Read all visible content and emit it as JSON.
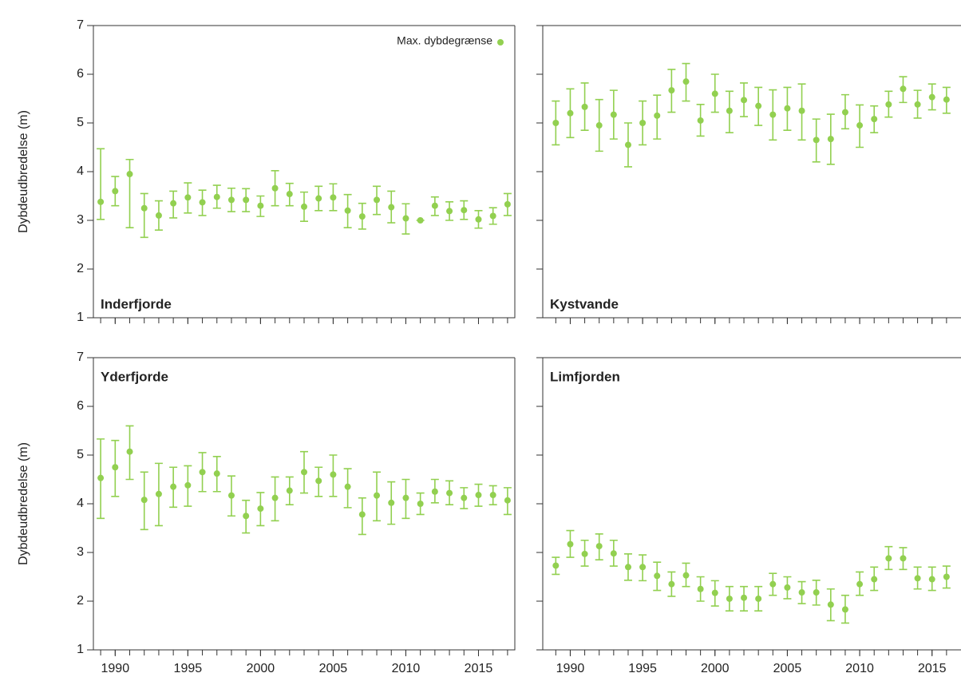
{
  "chart_data": [
    {
      "type": "scatter",
      "title": "Inderfjorde",
      "title_position": "bottom-left",
      "ylabel": "Dybdeudbredelse (m)",
      "legend": "upper right",
      "show_xtick_labels": false,
      "show_ytick_labels": true,
      "x": [
        1989,
        1990,
        1991,
        1992,
        1993,
        1994,
        1995,
        1996,
        1997,
        1998,
        1999,
        2000,
        2001,
        2002,
        2003,
        2004,
        2005,
        2006,
        2007,
        2008,
        2009,
        2010,
        2011,
        2012,
        2013,
        2014,
        2015,
        2016,
        2017
      ],
      "xlim": [
        1988.5,
        2017.5
      ],
      "xticks": [
        1990,
        1995,
        2000,
        2005,
        2010,
        2015
      ],
      "ylim": [
        1,
        7
      ],
      "yticks": [
        1,
        2,
        3,
        4,
        5,
        6,
        7
      ],
      "series": [
        {
          "name": "Max. dybdegrænse",
          "color": "#92d050",
          "values": [
            3.38,
            3.6,
            3.95,
            3.25,
            3.1,
            3.35,
            3.47,
            3.37,
            3.48,
            3.42,
            3.42,
            3.3,
            3.66,
            3.54,
            3.28,
            3.45,
            3.47,
            3.2,
            3.08,
            3.42,
            3.27,
            3.04,
            3.0,
            3.3,
            3.19,
            3.21,
            3.02,
            3.09,
            3.33
          ],
          "lower": [
            3.02,
            3.3,
            2.85,
            2.65,
            2.8,
            3.05,
            3.15,
            3.1,
            3.25,
            3.18,
            3.18,
            3.08,
            3.3,
            3.3,
            2.98,
            3.2,
            3.2,
            2.85,
            2.82,
            3.12,
            2.95,
            2.72,
            3.0,
            3.1,
            3.0,
            3.02,
            2.84,
            2.92,
            3.1
          ],
          "upper": [
            4.47,
            3.9,
            4.25,
            3.55,
            3.4,
            3.6,
            3.77,
            3.62,
            3.72,
            3.66,
            3.65,
            3.5,
            4.02,
            3.76,
            3.58,
            3.7,
            3.75,
            3.53,
            3.35,
            3.7,
            3.6,
            3.34,
            3.0,
            3.48,
            3.38,
            3.4,
            3.2,
            3.26,
            3.55
          ]
        }
      ]
    },
    {
      "type": "scatter",
      "title": "Kystvande",
      "title_position": "bottom-left",
      "show_xtick_labels": false,
      "show_ytick_labels": false,
      "x": [
        1989,
        1990,
        1991,
        1992,
        1993,
        1994,
        1995,
        1996,
        1997,
        1998,
        1999,
        2000,
        2001,
        2002,
        2003,
        2004,
        2005,
        2006,
        2007,
        2008,
        2009,
        2010,
        2011,
        2012,
        2013,
        2014,
        2015,
        2016
      ],
      "xlim": [
        1988.1,
        2017
      ],
      "xticks": [
        1990,
        1995,
        2000,
        2005,
        2010,
        2015
      ],
      "ylim": [
        1,
        7
      ],
      "yticks": [
        1,
        2,
        3,
        4,
        5,
        6,
        7
      ],
      "series": [
        {
          "color": "#92d050",
          "values": [
            5.0,
            5.2,
            5.33,
            4.95,
            5.17,
            4.55,
            5.0,
            5.15,
            5.67,
            5.85,
            5.05,
            5.6,
            5.25,
            5.47,
            5.35,
            5.17,
            5.3,
            5.25,
            4.65,
            4.67,
            5.22,
            4.95,
            5.08,
            5.38,
            5.7,
            5.38,
            5.53,
            5.48
          ],
          "lower": [
            4.55,
            4.7,
            4.85,
            4.42,
            4.67,
            4.1,
            4.55,
            4.67,
            5.22,
            5.45,
            4.73,
            5.22,
            4.8,
            5.13,
            4.95,
            4.65,
            4.85,
            4.65,
            4.2,
            4.15,
            4.88,
            4.5,
            4.8,
            5.12,
            5.42,
            5.1,
            5.27,
            5.2
          ],
          "upper": [
            5.45,
            5.7,
            5.82,
            5.48,
            5.67,
            5.0,
            5.45,
            5.57,
            6.1,
            6.22,
            5.38,
            6.0,
            5.65,
            5.82,
            5.73,
            5.68,
            5.73,
            5.8,
            5.08,
            5.18,
            5.58,
            5.37,
            5.35,
            5.65,
            5.95,
            5.67,
            5.8,
            5.73
          ]
        }
      ]
    },
    {
      "type": "scatter",
      "title": "Yderfjorde",
      "title_position": "top-left",
      "ylabel": "Dybdeudbredelse (m)",
      "show_xtick_labels": true,
      "show_ytick_labels": true,
      "x": [
        1989,
        1990,
        1991,
        1992,
        1993,
        1994,
        1995,
        1996,
        1997,
        1998,
        1999,
        2000,
        2001,
        2002,
        2003,
        2004,
        2005,
        2006,
        2007,
        2008,
        2009,
        2010,
        2011,
        2012,
        2013,
        2014,
        2015,
        2016,
        2017
      ],
      "xlim": [
        1988.5,
        2017.5
      ],
      "xticks": [
        1990,
        1995,
        2000,
        2005,
        2010,
        2015
      ],
      "ylim": [
        1,
        7
      ],
      "yticks": [
        1,
        2,
        3,
        4,
        5,
        6,
        7
      ],
      "series": [
        {
          "color": "#92d050",
          "values": [
            4.53,
            4.75,
            5.07,
            4.08,
            4.2,
            4.35,
            4.38,
            4.65,
            4.62,
            4.17,
            3.75,
            3.9,
            4.12,
            4.27,
            4.65,
            4.47,
            4.6,
            4.35,
            3.78,
            4.17,
            4.02,
            4.12,
            4.0,
            4.25,
            4.22,
            4.12,
            4.18,
            4.18,
            4.07
          ],
          "lower": [
            3.7,
            4.15,
            4.5,
            3.47,
            3.55,
            3.93,
            3.95,
            4.25,
            4.25,
            3.75,
            3.4,
            3.55,
            3.65,
            3.98,
            4.22,
            4.15,
            4.15,
            3.92,
            3.37,
            3.65,
            3.58,
            3.7,
            3.78,
            4.02,
            3.98,
            3.9,
            3.95,
            3.98,
            3.78
          ],
          "upper": [
            5.33,
            5.3,
            5.6,
            4.65,
            4.83,
            4.75,
            4.78,
            5.05,
            4.97,
            4.57,
            4.07,
            4.23,
            4.55,
            4.55,
            5.07,
            4.75,
            5.0,
            4.72,
            4.12,
            4.65,
            4.45,
            4.5,
            4.22,
            4.5,
            4.47,
            4.33,
            4.4,
            4.37,
            4.33
          ]
        }
      ]
    },
    {
      "type": "scatter",
      "title": "Limfjorden",
      "title_position": "top-left",
      "show_xtick_labels": true,
      "show_ytick_labels": false,
      "x": [
        1989,
        1990,
        1991,
        1992,
        1993,
        1994,
        1995,
        1996,
        1997,
        1998,
        1999,
        2000,
        2001,
        2002,
        2003,
        2004,
        2005,
        2006,
        2007,
        2008,
        2009,
        2010,
        2011,
        2012,
        2013,
        2014,
        2015,
        2016
      ],
      "xlim": [
        1988.1,
        2017
      ],
      "xticks": [
        1990,
        1995,
        2000,
        2005,
        2010,
        2015
      ],
      "ylim": [
        1,
        7
      ],
      "yticks": [
        1,
        2,
        3,
        4,
        5,
        6,
        7
      ],
      "series": [
        {
          "color": "#92d050",
          "values": [
            2.73,
            3.17,
            2.97,
            3.13,
            2.98,
            2.7,
            2.7,
            2.52,
            2.35,
            2.53,
            2.25,
            2.17,
            2.05,
            2.07,
            2.05,
            2.35,
            2.28,
            2.18,
            2.18,
            1.93,
            1.83,
            2.35,
            2.45,
            2.88,
            2.88,
            2.47,
            2.45,
            2.5
          ],
          "lower": [
            2.55,
            2.9,
            2.72,
            2.85,
            2.72,
            2.43,
            2.42,
            2.22,
            2.1,
            2.3,
            2.0,
            1.9,
            1.8,
            1.8,
            1.8,
            2.12,
            2.05,
            1.95,
            1.92,
            1.6,
            1.55,
            2.12,
            2.22,
            2.65,
            2.65,
            2.25,
            2.22,
            2.27
          ],
          "upper": [
            2.9,
            3.45,
            3.25,
            3.38,
            3.25,
            2.97,
            2.95,
            2.8,
            2.6,
            2.78,
            2.5,
            2.42,
            2.3,
            2.3,
            2.3,
            2.57,
            2.5,
            2.4,
            2.43,
            2.25,
            2.12,
            2.6,
            2.7,
            3.12,
            3.1,
            2.7,
            2.7,
            2.72
          ]
        }
      ]
    }
  ]
}
